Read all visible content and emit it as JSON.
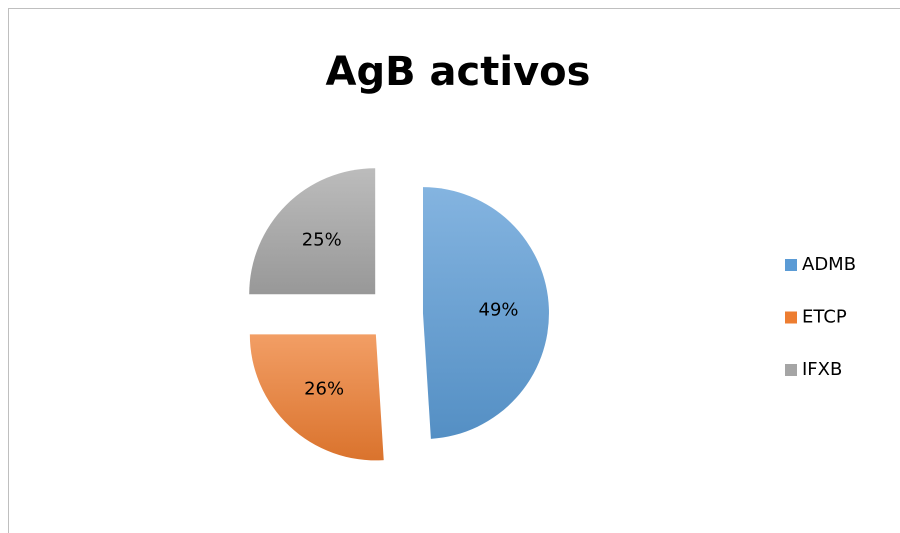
{
  "chart_data": {
    "type": "pie",
    "title": "AgB activos",
    "categories": [
      "ADMB",
      "ETCP",
      "IFXB"
    ],
    "values": [
      49,
      26,
      25
    ],
    "value_labels": [
      "49%",
      "26%",
      "25%"
    ],
    "colors": [
      "#5b9bd5",
      "#ed7d31",
      "#a5a5a5"
    ],
    "legend": "right"
  }
}
